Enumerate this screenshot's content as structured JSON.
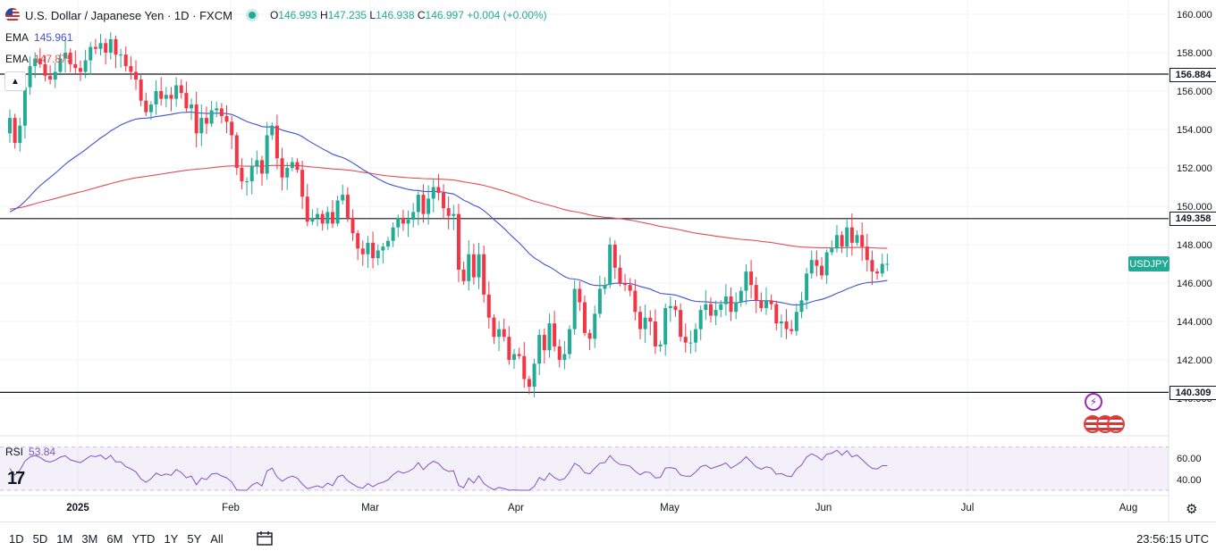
{
  "header": {
    "title": "U.S. Dollar / Japanese Yen · 1D · FXCM",
    "ohlc": {
      "o_label": "O",
      "o": "146.993",
      "h_label": "H",
      "h": "147.235",
      "l_label": "L",
      "l": "146.938",
      "c_label": "C",
      "c": "146.997",
      "change": "+0.004 (+0.00%)"
    },
    "market_status_color": "#22ab94"
  },
  "indicators": {
    "ema_fast": {
      "label": "EMA",
      "value": "145.961",
      "color": "#3f51d8"
    },
    "ema_slow": {
      "label": "EMA",
      "value": "147.875",
      "color": "#e14d57"
    },
    "rsi": {
      "label": "RSI",
      "value": "53.84",
      "color": "#7e57c2"
    }
  },
  "price_scale_labels": [
    "160.000",
    "158.000",
    "156.000",
    "154.000",
    "152.000",
    "150.000",
    "148.000",
    "146.000",
    "144.000",
    "142.000",
    "140.000"
  ],
  "rsi_scale_labels": [
    "60.00",
    "40.00"
  ],
  "time_axis_labels": [
    "2025",
    "Feb",
    "Mar",
    "Apr",
    "May",
    "Jun",
    "Jul",
    "Aug"
  ],
  "horizontal_levels": [
    {
      "value": 156.884,
      "label": "156.884"
    },
    {
      "value": 149.358,
      "label": "149.358"
    },
    {
      "value": 140.309,
      "label": "140.309"
    }
  ],
  "symbol_tag": "USDJPY",
  "bottom_bar": {
    "ranges": [
      "1D",
      "5D",
      "1M",
      "3M",
      "6M",
      "YTD",
      "1Y",
      "5Y",
      "All"
    ],
    "clock": "23:56:15 UTC"
  },
  "colors": {
    "up": "#22ab94",
    "down": "#f23645",
    "axis_text": "#131722",
    "grid": "#f0f3fa"
  },
  "chart_data": {
    "type": "candlestick",
    "title": "U.S. Dollar / Japanese Yen · 1D · FXCM",
    "ylim": [
      138.6,
      160.8
    ],
    "x_labels": [
      "2025",
      "Feb",
      "Mar",
      "Apr",
      "May",
      "Jun",
      "Jul",
      "Aug"
    ],
    "closes": [
      154.6,
      153.3,
      154.2,
      156.2,
      157.3,
      157.7,
      157.4,
      156.8,
      156.6,
      157.0,
      157.7,
      158.0,
      157.4,
      157.2,
      157.0,
      157.6,
      158.3,
      158.2,
      158.5,
      158.0,
      158.7,
      157.9,
      157.9,
      157.3,
      157.0,
      156.6,
      155.5,
      154.9,
      155.3,
      156.0,
      155.6,
      155.8,
      155.6,
      156.3,
      155.9,
      155.1,
      155.3,
      153.8,
      154.6,
      154.3,
      155.0,
      155.1,
      154.7,
      154.4,
      153.7,
      152.0,
      151.3,
      151.3,
      152.1,
      152.4,
      151.7,
      153.7,
      154.2,
      152.5,
      151.5,
      152.0,
      152.3,
      151.9,
      150.5,
      149.2,
      149.4,
      149.6,
      149.1,
      149.7,
      149.1,
      150.3,
      150.6,
      149.4,
      148.6,
      147.8,
      147.5,
      148.1,
      147.3,
      147.7,
      147.9,
      148.2,
      148.9,
      149.4,
      149.1,
      149.3,
      149.7,
      150.6,
      149.6,
      150.4,
      151.0,
      150.7,
      149.9,
      149.5,
      149.6,
      146.7,
      146.1,
      147.5,
      146.3,
      147.5,
      145.4,
      144.2,
      143.2,
      143.6,
      143.2,
      142.0,
      142.3,
      142.2,
      141.0,
      140.6,
      141.8,
      143.3,
      142.5,
      143.9,
      142.7,
      142.0,
      142.3,
      143.6,
      145.7,
      145.0,
      143.4,
      143.1,
      144.4,
      145.7,
      145.9,
      148.0,
      146.8,
      146.0,
      145.9,
      145.6,
      144.5,
      143.6,
      144.2,
      144.0,
      142.7,
      142.8,
      144.7,
      144.8,
      144.6,
      143.2,
      142.9,
      142.9,
      143.6,
      144.6,
      144.9,
      144.3,
      144.6,
      144.9,
      145.3,
      144.5,
      145.0,
      145.6,
      146.6,
      145.9,
      145.1,
      144.7,
      145.1,
      144.9,
      143.9,
      144.0,
      143.6,
      143.5,
      144.5,
      145.1,
      146.5,
      147.2,
      146.9,
      146.4,
      147.6,
      147.8,
      148.5,
      147.9,
      148.9,
      148.1,
      148.5,
      147.9,
      147.2,
      146.6,
      146.5,
      147.0,
      147.0
    ]
  }
}
